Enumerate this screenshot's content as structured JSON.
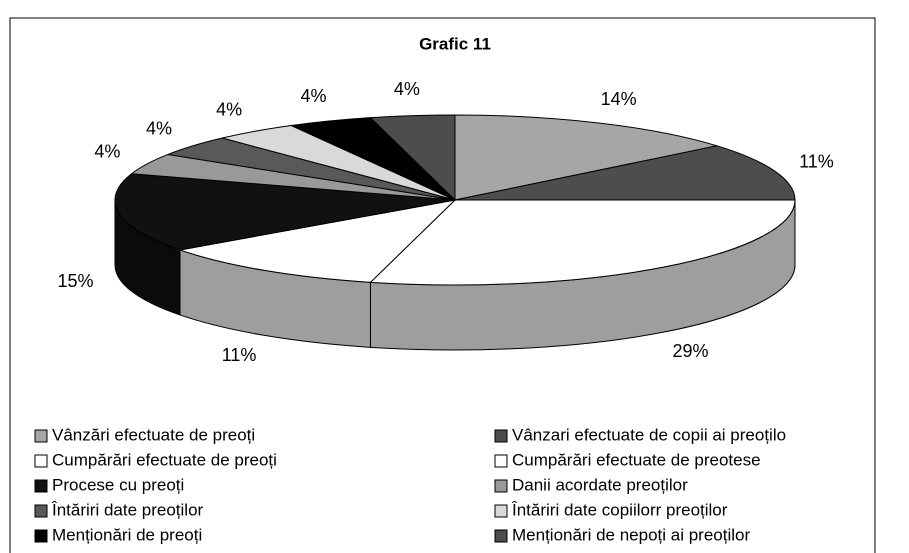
{
  "chart_data": {
    "type": "pie",
    "title": "Grafic 11",
    "categories": [
      "Vânzări efectuate de preoți",
      "Vânzari efectuate  de copii ai preoțilo",
      "Cumpărări efectuate de preoți",
      "Cumpărări efectuate de preotese",
      "Procese cu preoți",
      "Danii acordate preoților",
      "Întăriri date preoților",
      "Întăriri date copiilorr preoților",
      "Menționări de preoți",
      "Menționări de nepoți ai preoților"
    ],
    "values": [
      14,
      11,
      29,
      11,
      15,
      4,
      4,
      4,
      4,
      4
    ],
    "value_labels": [
      "14%",
      "11%",
      "29%",
      "11%",
      "15%",
      "4%",
      "4%",
      "4%",
      "4%",
      "4%"
    ],
    "colors": [
      "#a6a6a6",
      "#4d4d4d",
      "#ffffff",
      "#ffffff",
      "#111111",
      "#999999",
      "#595959",
      "#d9d9d9",
      "#000000",
      "#4d4d4d"
    ]
  }
}
